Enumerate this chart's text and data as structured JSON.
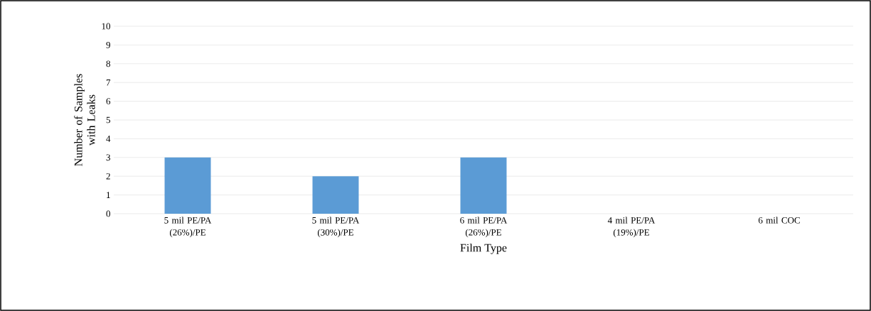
{
  "chart_data": {
    "type": "bar",
    "xlabel": "Film Type",
    "ylabel": "Number of Samples with Leaks",
    "categories": [
      "5 mil PE/PA (26%)/PE",
      "5 mil PE/PA (30%)/PE",
      "6 mil PE/PA (26%)/PE",
      "4 mil PE/PA (19%)/PE",
      "6 mil COC"
    ],
    "values": [
      3,
      2,
      3,
      0,
      0
    ],
    "color": "#5b9bd5",
    "ylim": [
      0,
      10
    ],
    "yticks": [
      0,
      1,
      2,
      3,
      4,
      5,
      6,
      7,
      8,
      9,
      10
    ],
    "grid": "y"
  }
}
